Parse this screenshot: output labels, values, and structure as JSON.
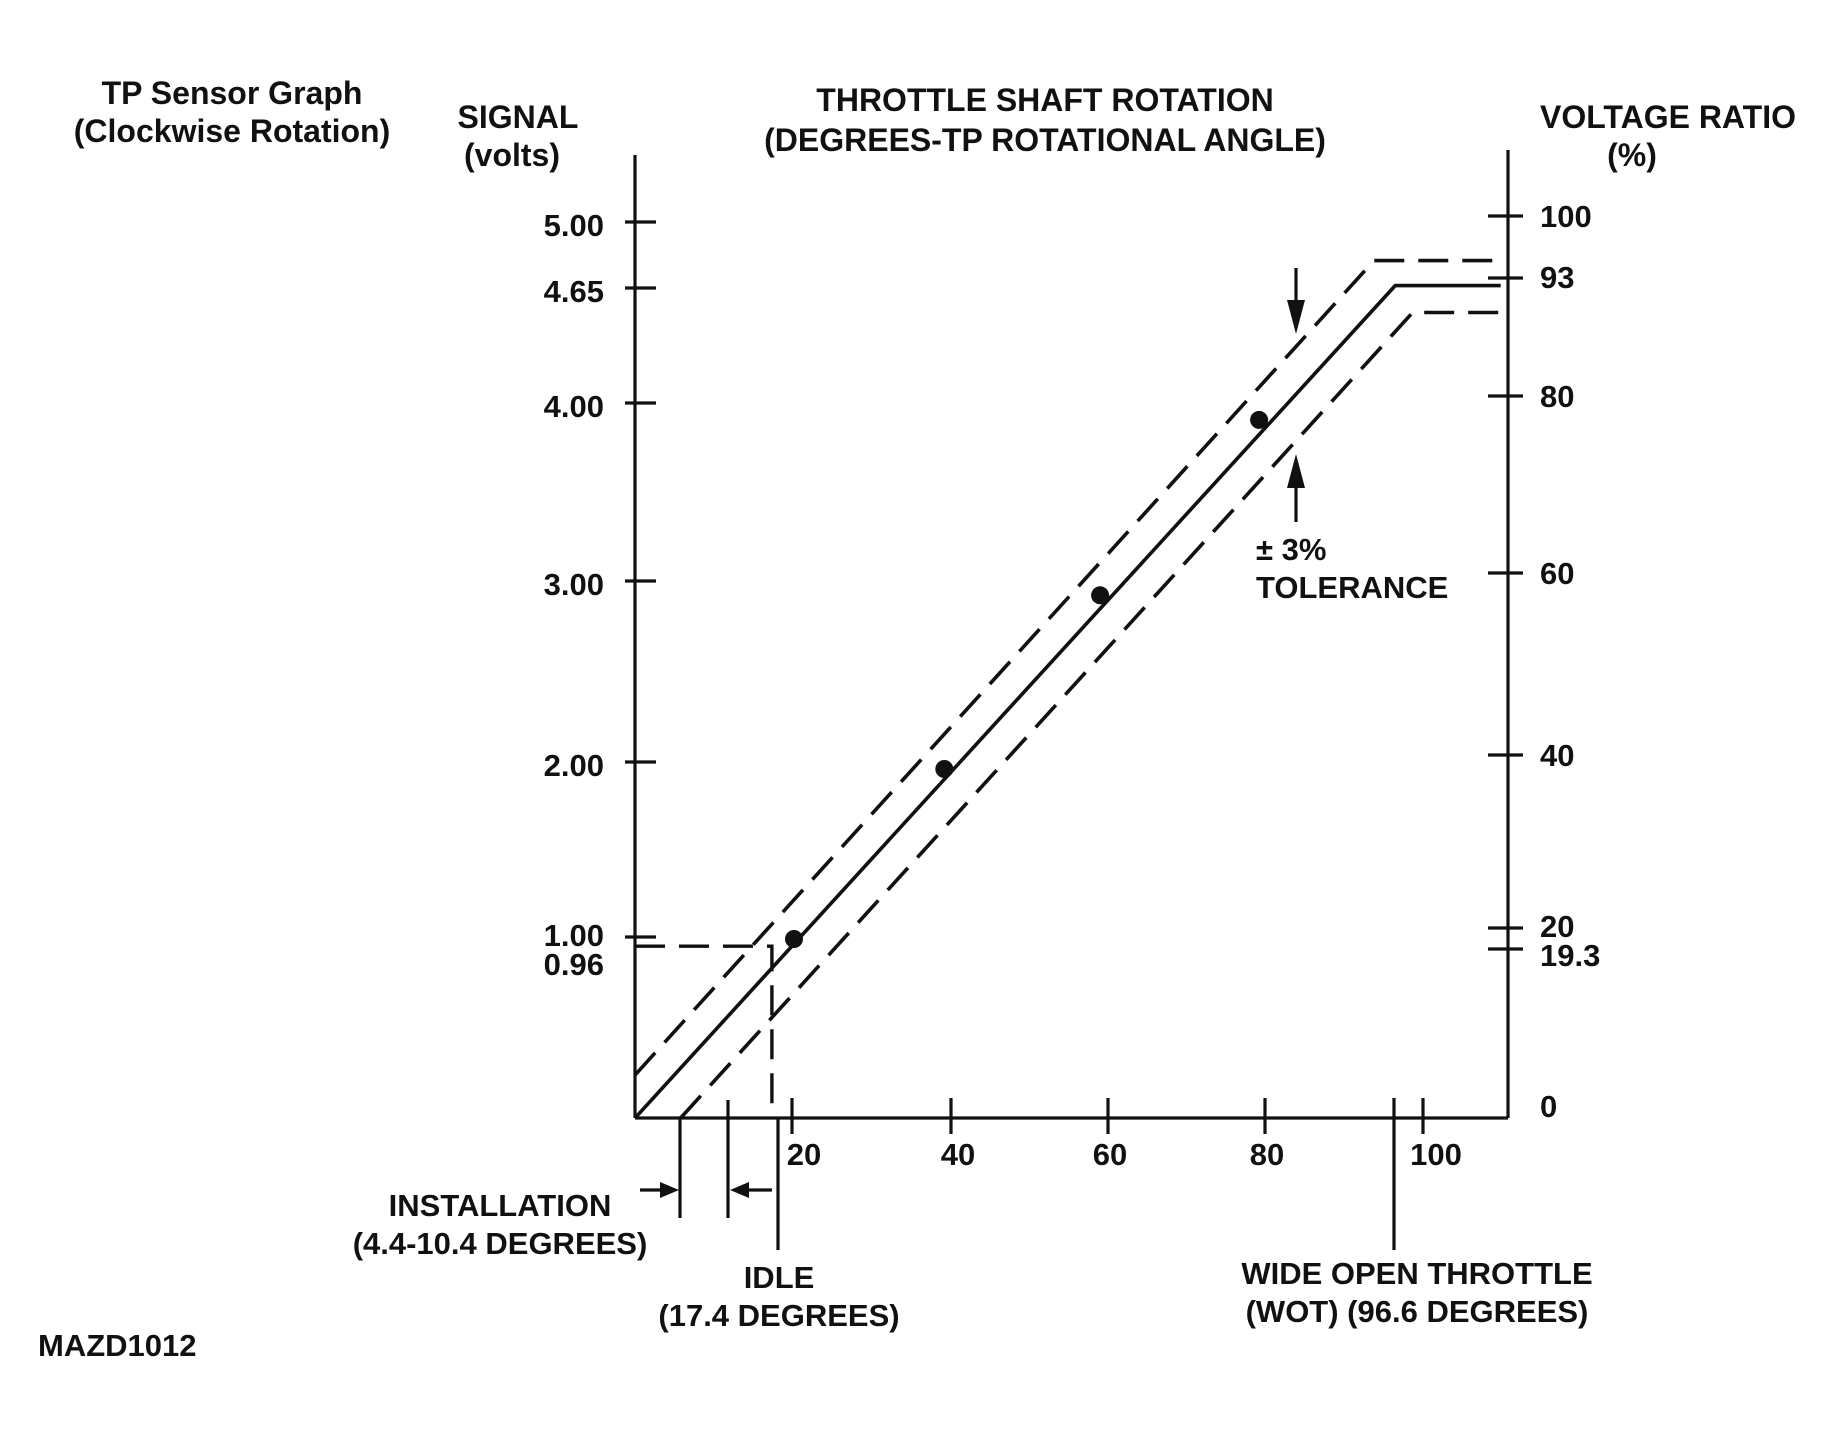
{
  "figure_code": "MAZD1012",
  "chart_data": {
    "type": "line",
    "title": "TP Sensor Graph",
    "subtitle": "(Clockwise Rotation)",
    "xlabel": "THROTTLE SHAFT ROTATION",
    "xlabel_sub": "(DEGREES-TP ROTATIONAL ANGLE)",
    "ylabel_left": "SIGNAL",
    "ylabel_left_unit": "(volts)",
    "ylabel_right": "VOLTAGE RATIO",
    "ylabel_right_unit": "(%)",
    "xlim": [
      0,
      110
    ],
    "ylim": [
      0,
      5.4
    ],
    "x_ticks": [
      "20",
      "40",
      "60",
      "80",
      "100"
    ],
    "y_ticks_left": [
      "5.00",
      "4.65",
      "4.00",
      "3.00",
      "2.00",
      "1.00",
      "0.96"
    ],
    "y_ticks_right": [
      "100",
      "93",
      "80",
      "60",
      "40",
      "20",
      "19.3",
      "0"
    ],
    "grid": false,
    "series": [
      {
        "style": "solid",
        "x": [
          0,
          96.6,
          110
        ],
        "y": [
          0,
          4.65,
          4.65
        ]
      },
      {
        "style": "dashed",
        "x": [
          0,
          93.9,
          110
        ],
        "y": [
          0.24,
          4.79,
          4.79
        ]
      },
      {
        "style": "dashed",
        "x": [
          5.8,
          98.8,
          110
        ],
        "y": [
          0,
          4.5,
          4.5
        ]
      }
    ],
    "points": [
      {
        "x": 20.2,
        "y": 1.0
      },
      {
        "x": 39.3,
        "y": 1.95
      },
      {
        "x": 59.1,
        "y": 2.92
      },
      {
        "x": 79.3,
        "y": 3.9
      }
    ],
    "annotations": {
      "tolerance": "± 3%",
      "tolerance_label": "TOLERANCE",
      "installation": "INSTALLATION",
      "installation_range": "(4.4-10.4 DEGREES)",
      "idle": "IDLE",
      "idle_value": "(17.4 DEGREES)",
      "wot": "WIDE OPEN THROTTLE",
      "wot_value": "(WOT) (96.6 DEGREES)"
    },
    "markers": {
      "installation_min": 4.4,
      "installation_max": 10.4,
      "idle": 17.4,
      "idle_signal": 0.96,
      "wot": 96.6
    }
  }
}
